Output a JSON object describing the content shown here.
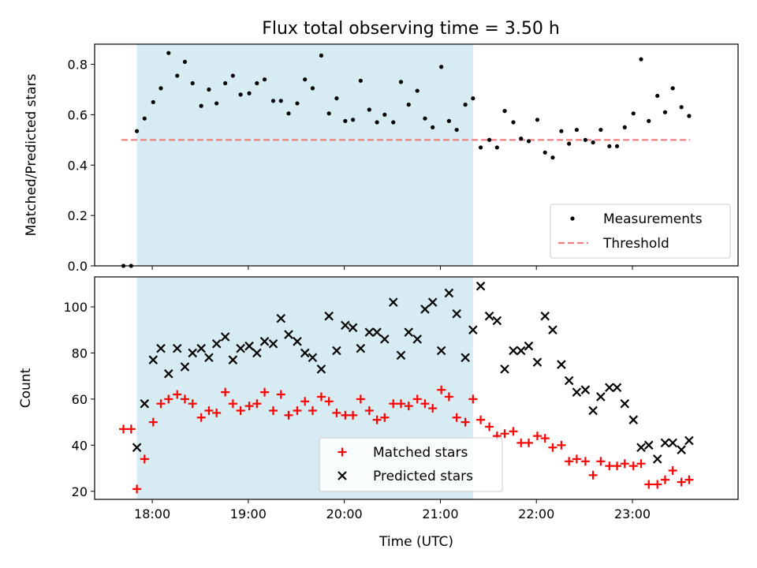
{
  "figure": {
    "title": "Flux total observing time = 3.50 h"
  },
  "colors": {
    "shade": "#add8e6",
    "threshold": "#f08080",
    "measurement": "#000000",
    "matched": "#ff0000",
    "predicted": "#000000"
  },
  "chart_data": [
    {
      "type": "scatter",
      "ylabel": "Matched/Predicted stars",
      "ylim": [
        0,
        0.88
      ],
      "yticks": [
        0.0,
        0.2,
        0.4,
        0.6,
        0.8
      ],
      "ytick_labels": [
        "0.0",
        "0.2",
        "0.4",
        "0.6",
        "0.8"
      ],
      "xlim": [
        17.4,
        24.1
      ],
      "shaded_span": [
        17.84,
        21.34
      ],
      "threshold": {
        "y": 0.5,
        "x_start": 17.68,
        "x_end": 23.6
      },
      "legend": {
        "position": "lower right",
        "entries": [
          "Measurements",
          "Threshold"
        ]
      },
      "series": [
        {
          "name": "Measurements",
          "marker": "dot",
          "x": [
            17.7,
            17.78,
            17.84,
            17.92,
            18.01,
            18.09,
            18.17,
            18.26,
            18.34,
            18.42,
            18.51,
            18.59,
            18.67,
            18.76,
            18.84,
            18.92,
            19.01,
            19.09,
            19.17,
            19.26,
            19.34,
            19.42,
            19.51,
            19.59,
            19.67,
            19.76,
            19.84,
            19.92,
            20.01,
            20.09,
            20.17,
            20.26,
            20.34,
            20.42,
            20.51,
            20.59,
            20.67,
            20.76,
            20.84,
            20.92,
            21.01,
            21.09,
            21.17,
            21.26,
            21.34,
            21.42,
            21.51,
            21.59,
            21.67,
            21.76,
            21.84,
            21.92,
            22.01,
            22.09,
            22.17,
            22.26,
            22.34,
            22.42,
            22.51,
            22.59,
            22.67,
            22.76,
            22.84,
            22.92,
            23.01,
            23.09,
            23.17,
            23.26,
            23.34,
            23.42,
            23.51,
            23.59
          ],
          "y": [
            0.0,
            0.0,
            0.535,
            0.585,
            0.65,
            0.705,
            0.845,
            0.755,
            0.81,
            0.725,
            0.635,
            0.7,
            0.645,
            0.725,
            0.755,
            0.68,
            0.685,
            0.725,
            0.74,
            0.655,
            0.655,
            0.605,
            0.645,
            0.74,
            0.705,
            0.835,
            0.605,
            0.665,
            0.575,
            0.58,
            0.735,
            0.62,
            0.57,
            0.6,
            0.57,
            0.73,
            0.64,
            0.695,
            0.585,
            0.55,
            0.79,
            0.575,
            0.54,
            0.64,
            0.665,
            0.47,
            0.5,
            0.47,
            0.615,
            0.57,
            0.505,
            0.495,
            0.58,
            0.45,
            0.43,
            0.535,
            0.485,
            0.54,
            0.5,
            0.49,
            0.54,
            0.475,
            0.475,
            0.55,
            0.605,
            0.82,
            0.575,
            0.675,
            0.61,
            0.705,
            0.63,
            0.595
          ]
        }
      ]
    },
    {
      "type": "scatter",
      "ylabel": "Count",
      "xlabel": "Time (UTC)",
      "ylim": [
        16.5,
        113
      ],
      "yticks": [
        20,
        40,
        60,
        80,
        100
      ],
      "ytick_labels": [
        "20",
        "40",
        "60",
        "80",
        "100"
      ],
      "xlim": [
        17.4,
        24.1
      ],
      "xticks": [
        18,
        19,
        20,
        21,
        22,
        23
      ],
      "xtick_labels": [
        "18:00",
        "19:00",
        "20:00",
        "21:00",
        "22:00",
        "23:00"
      ],
      "shaded_span": [
        17.84,
        21.34
      ],
      "legend": {
        "position": "lower center",
        "entries": [
          "Matched stars",
          "Predicted stars"
        ]
      },
      "series": [
        {
          "name": "Matched stars",
          "marker": "plus",
          "x": [
            17.7,
            17.78,
            17.84,
            17.92,
            18.01,
            18.09,
            18.17,
            18.26,
            18.34,
            18.42,
            18.51,
            18.59,
            18.67,
            18.76,
            18.84,
            18.92,
            19.01,
            19.09,
            19.17,
            19.26,
            19.34,
            19.42,
            19.51,
            19.59,
            19.67,
            19.76,
            19.84,
            19.92,
            20.01,
            20.09,
            20.17,
            20.26,
            20.34,
            20.42,
            20.51,
            20.59,
            20.67,
            20.76,
            20.84,
            20.92,
            21.01,
            21.09,
            21.17,
            21.26,
            21.34,
            21.42,
            21.51,
            21.59,
            21.67,
            21.76,
            21.84,
            21.92,
            22.01,
            22.09,
            22.17,
            22.26,
            22.34,
            22.42,
            22.51,
            22.59,
            22.67,
            22.76,
            22.84,
            22.92,
            23.01,
            23.09,
            23.17,
            23.26,
            23.34,
            23.42,
            23.51,
            23.59
          ],
          "y": [
            47,
            47,
            21,
            34,
            50,
            58,
            60,
            62,
            60,
            58,
            52,
            55,
            54,
            63,
            58,
            55,
            57,
            58,
            63,
            55,
            62,
            53,
            55,
            59,
            55,
            61,
            59,
            54,
            53,
            53,
            60,
            55,
            51,
            52,
            58,
            58,
            57,
            60,
            58,
            56,
            64,
            61,
            52,
            50,
            60,
            51,
            48,
            44,
            45,
            46,
            41,
            41,
            44,
            43,
            39,
            40,
            33,
            34,
            33,
            27,
            33,
            31,
            31,
            32,
            31,
            32,
            23,
            23,
            25,
            29,
            24,
            25
          ]
        },
        {
          "name": "Predicted stars",
          "marker": "x",
          "x": [
            17.84,
            17.92,
            18.01,
            18.09,
            18.17,
            18.26,
            18.34,
            18.42,
            18.51,
            18.59,
            18.67,
            18.76,
            18.84,
            18.92,
            19.01,
            19.09,
            19.17,
            19.26,
            19.34,
            19.42,
            19.51,
            19.59,
            19.67,
            19.76,
            19.84,
            19.92,
            20.01,
            20.09,
            20.17,
            20.26,
            20.34,
            20.42,
            20.51,
            20.59,
            20.67,
            20.76,
            20.84,
            20.92,
            21.01,
            21.09,
            21.17,
            21.26,
            21.34,
            21.42,
            21.51,
            21.59,
            21.67,
            21.76,
            21.84,
            21.92,
            22.01,
            22.09,
            22.17,
            22.26,
            22.34,
            22.42,
            22.51,
            22.59,
            22.67,
            22.76,
            22.84,
            22.92,
            23.01,
            23.09,
            23.17,
            23.26,
            23.34,
            23.42,
            23.51,
            23.59
          ],
          "y": [
            39,
            58,
            77,
            82,
            71,
            82,
            74,
            80,
            82,
            78,
            84,
            87,
            77,
            82,
            83,
            80,
            85,
            84,
            95,
            88,
            85,
            80,
            78,
            73,
            96,
            81,
            92,
            91,
            82,
            89,
            89,
            86,
            102,
            79,
            89,
            86,
            99,
            102,
            81,
            106,
            97,
            78,
            90,
            109,
            96,
            94,
            73,
            81,
            81,
            83,
            76,
            96,
            90,
            75,
            68,
            63,
            64,
            55,
            61,
            65,
            65,
            58,
            51,
            39,
            40,
            34,
            41,
            41,
            38,
            42
          ]
        }
      ]
    }
  ]
}
